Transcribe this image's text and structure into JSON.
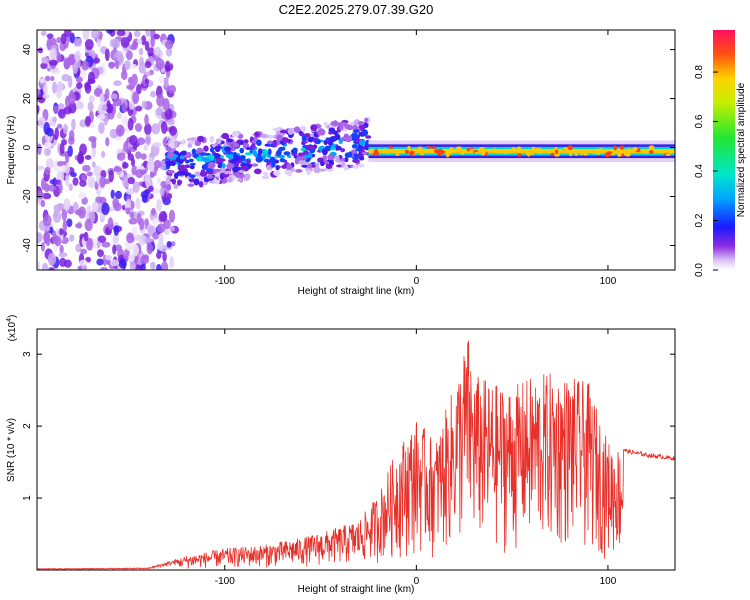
{
  "chart_data": [
    {
      "type": "heatmap",
      "title": "C2E2.2025.279.07.39.G20",
      "xlabel": "Height of straight line (km)",
      "ylabel": "Frequency (Hz)",
      "xlim": [
        -198,
        135
      ],
      "ylim": [
        -50,
        48
      ],
      "xticks": [
        {
          "v": -100,
          "label": "-100"
        },
        {
          "v": 0,
          "label": "0"
        },
        {
          "v": 100,
          "label": "100"
        }
      ],
      "yticks": [
        {
          "v": -40,
          "label": "-40"
        },
        {
          "v": -20,
          "label": "-20"
        },
        {
          "v": 0,
          "label": "0"
        },
        {
          "v": 20,
          "label": "20"
        },
        {
          "v": 40,
          "label": "40"
        }
      ],
      "colorbar": {
        "label": "Normalized spectral amplitude",
        "range": [
          0,
          0.97
        ],
        "ticks": [
          {
            "v": 0.0,
            "label": "0.0"
          },
          {
            "v": 0.2,
            "label": "0.2"
          },
          {
            "v": 0.4,
            "label": "0.4"
          },
          {
            "v": 0.6,
            "label": "0.6"
          },
          {
            "v": 0.8,
            "label": "0.8"
          }
        ]
      },
      "regions": [
        {
          "name": "noise",
          "x": [
            -198,
            -126
          ],
          "y": [
            -50,
            48
          ],
          "level": 0.1
        },
        {
          "name": "rising-track",
          "x": [
            -130,
            -25
          ],
          "center_y": [
            -7,
            2
          ],
          "halfwidth": 6,
          "level": 0.35
        },
        {
          "name": "steady-tone",
          "x": [
            -25,
            135
          ],
          "center_y": [
            -2,
            -1
          ],
          "halfwidth": 2,
          "level": 0.95
        }
      ]
    },
    {
      "type": "line",
      "xlabel": "Height of straight line (km)",
      "ylabel": "SNR (10 * v/v)",
      "exponent_label": "(x10",
      "exponent_power": "4",
      "exponent_close": ")",
      "color": "#e8302a",
      "xlim": [
        -198,
        135
      ],
      "ylim": [
        0,
        3.35
      ],
      "xticks": [
        {
          "v": -100,
          "label": "-100"
        },
        {
          "v": 0,
          "label": "0"
        },
        {
          "v": 100,
          "label": "100"
        }
      ],
      "yticks": [
        {
          "v": 1,
          "label": "1"
        },
        {
          "v": 2,
          "label": "2"
        },
        {
          "v": 3,
          "label": "3"
        }
      ],
      "series": [
        {
          "name": "SNR envelope",
          "x": [
            -198,
            -140,
            -120,
            -100,
            -80,
            -60,
            -40,
            -30,
            -20,
            -10,
            0,
            10,
            20,
            27,
            30,
            40,
            50,
            60,
            70,
            80,
            90,
            95,
            100,
            110,
            120,
            135
          ],
          "y": [
            0.02,
            0.03,
            0.2,
            0.3,
            0.35,
            0.45,
            0.6,
            0.7,
            1.05,
            1.7,
            2.1,
            1.8,
            2.6,
            3.3,
            2.75,
            2.6,
            2.55,
            2.7,
            2.75,
            2.7,
            2.6,
            2.2,
            1.8,
            1.65,
            1.6,
            1.55
          ]
        }
      ]
    }
  ]
}
